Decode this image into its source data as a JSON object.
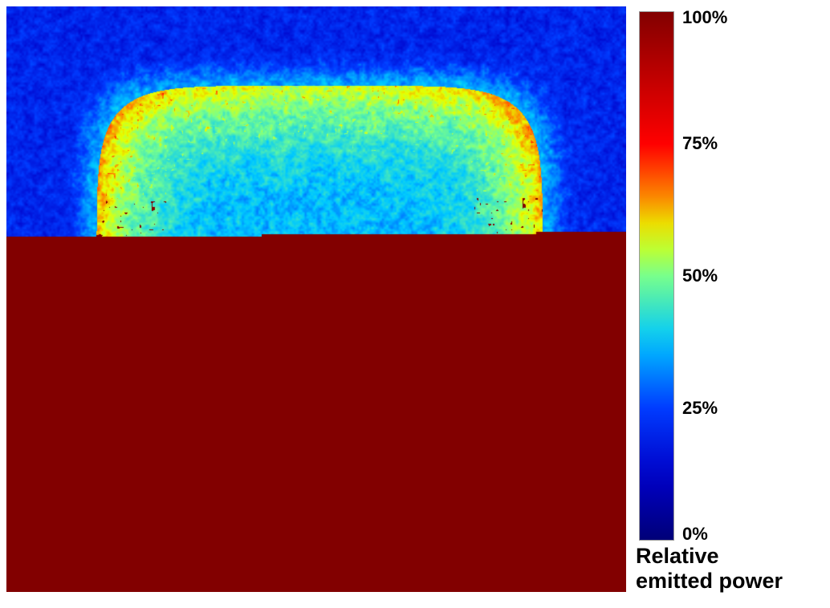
{
  "chart_data": {
    "type": "heatmap",
    "title": "",
    "xlabel": "",
    "ylabel": "",
    "colormap": "jet",
    "value_range": [
      0,
      100
    ],
    "colorbar": {
      "ticks": [
        {
          "value": 100,
          "label": "100%"
        },
        {
          "value": 75,
          "label": "75%"
        },
        {
          "value": 50,
          "label": "50%"
        },
        {
          "value": 25,
          "label": "25%"
        },
        {
          "value": 0,
          "label": "0%"
        }
      ],
      "label_line1": "Relative",
      "label_line2": "emitted power"
    },
    "field": {
      "description_values": {
        "background": 20,
        "outer_halo": 35,
        "bright_frame": 55,
        "center": 37,
        "hotspots_peak": 72
      },
      "notes": "Square emission pattern with a bright ring near the edges and cooler centre; hotspots concentrated in corners and along left/right edges."
    }
  }
}
